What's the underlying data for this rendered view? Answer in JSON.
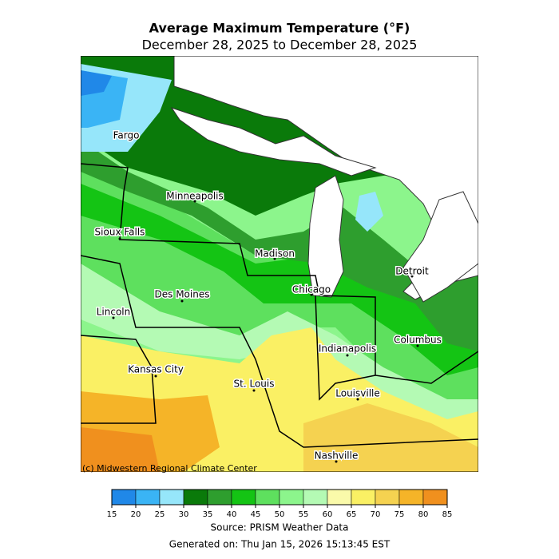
{
  "header": {
    "title": "Average Maximum Temperature (°F)",
    "subtitle": "December 28, 2025 to December 28, 2025"
  },
  "map": {
    "cities": [
      "Fargo",
      "Minneapolis",
      "Sioux Falls",
      "Madison",
      "Detroit",
      "Chicago",
      "Des Moines",
      "Lincoln",
      "Columbus",
      "Indianapolis",
      "Kansas City",
      "St. Louis",
      "Louisville",
      "Nashville"
    ],
    "credit": "(c) Midwestern Regional Climate Center"
  },
  "colorbar": {
    "ticks": [
      15,
      20,
      25,
      30,
      35,
      40,
      45,
      50,
      55,
      60,
      65,
      70,
      75,
      80,
      85
    ],
    "colors": [
      "#2088e8",
      "#3ab4f5",
      "#96e6fa",
      "#0a7a0a",
      "#2e9e2e",
      "#14c414",
      "#5ee05e",
      "#8cf58c",
      "#b4fab4",
      "#fafaaa",
      "#faf064",
      "#f5d250",
      "#f5b428",
      "#f0901e"
    ]
  },
  "footer": {
    "source": "Source: PRISM Weather Data",
    "generated": "Generated on: Thu Jan 15, 2026 15:13:45 EST"
  }
}
